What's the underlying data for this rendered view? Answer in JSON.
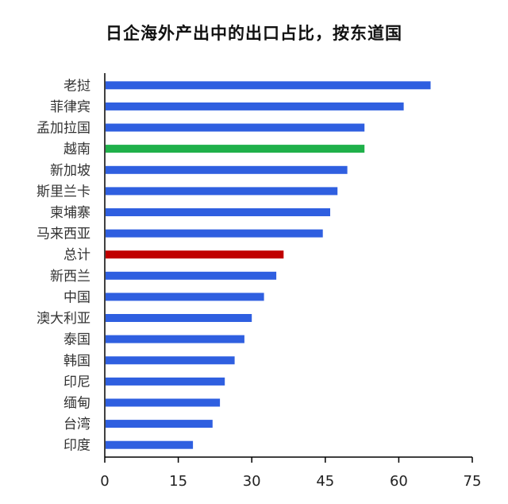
{
  "chart_data": {
    "type": "bar",
    "orientation": "horizontal",
    "title": "日企海外产出中的出口占比，按东道国",
    "xlabel": "",
    "ylabel": "",
    "xlim": [
      0,
      75
    ],
    "xticks": [
      0,
      15,
      30,
      45,
      60,
      75
    ],
    "grid": false,
    "legend": "none",
    "categories": [
      "老挝",
      "菲律宾",
      "孟加拉国",
      "越南",
      "新加坡",
      "斯里兰卡",
      "柬埔寨",
      "马来西亚",
      "总计",
      "新西兰",
      "中国",
      "澳大利亚",
      "泰国",
      "韩国",
      "印尼",
      "缅甸",
      "台湾",
      "印度"
    ],
    "values": [
      66.5,
      61,
      53,
      53,
      49.5,
      47.5,
      46,
      44.5,
      36.5,
      35,
      32.5,
      30,
      28.5,
      26.5,
      24.5,
      23.5,
      22,
      18
    ],
    "colors": [
      "#2f5fe0",
      "#2f5fe0",
      "#2f5fe0",
      "#1fb04a",
      "#2f5fe0",
      "#2f5fe0",
      "#2f5fe0",
      "#2f5fe0",
      "#c00000",
      "#2f5fe0",
      "#2f5fe0",
      "#2f5fe0",
      "#2f5fe0",
      "#2f5fe0",
      "#2f5fe0",
      "#2f5fe0",
      "#2f5fe0",
      "#2f5fe0"
    ],
    "axis_color": "#000000"
  }
}
